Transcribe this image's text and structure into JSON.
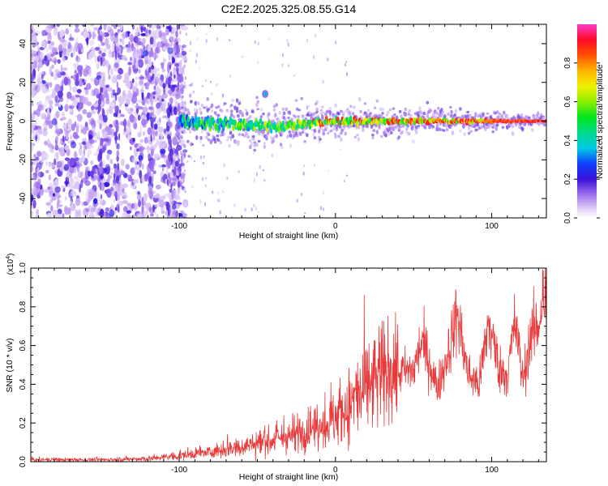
{
  "chart_data": [
    {
      "type": "heatmap",
      "title": "C2E2.2025.325.08.55.G14",
      "xlabel": "Height of straight line (km)",
      "ylabel": "Frequency (Hz)",
      "xlim": [
        -195,
        135
      ],
      "ylim": [
        -50,
        50
      ],
      "x_ticks": [
        -100,
        0,
        100
      ],
      "x_tick_labels": [
        "-100",
        "0",
        "100"
      ],
      "y_ticks": [
        -40,
        -20,
        0,
        20,
        40
      ],
      "y_tick_labels": [
        "-40",
        "-20",
        "0",
        "20",
        "40"
      ],
      "colorbar": {
        "label": "Normalized spectral amplitude",
        "range": [
          0,
          1
        ],
        "ticks": [
          0.0,
          0.2,
          0.4,
          0.6,
          0.8
        ],
        "tick_labels": [
          "0.0",
          "0.2",
          "0.4",
          "0.6",
          "0.8"
        ]
      },
      "regions": [
        {
          "name": "broadband noise",
          "x_range": [
            -195,
            -100
          ],
          "freq_range": [
            -50,
            50
          ],
          "amplitude": 0.15
        },
        {
          "name": "signal trace",
          "x_range": [
            -100,
            135
          ],
          "center_freq": [
            [
              -100,
              0
            ],
            [
              -40,
              -3
            ],
            [
              0,
              0
            ],
            [
              135,
              0
            ]
          ],
          "peak_amplitude": 0.9
        },
        {
          "name": "isolated spot",
          "x": -45,
          "freq": 14,
          "amplitude": 0.25
        }
      ]
    },
    {
      "type": "line",
      "title": "",
      "xlabel": "Height of straight line (km)",
      "ylabel": "SNR (10 * v/v)",
      "y_scale_note": "(x10^4)",
      "y_scale_base": "(x10",
      "y_scale_exp": "4",
      "y_scale_close": ")",
      "xlim": [
        -195,
        135
      ],
      "ylim": [
        0,
        1.0
      ],
      "x_ticks": [
        -100,
        0,
        100
      ],
      "x_tick_labels": [
        "-100",
        "0",
        "100"
      ],
      "y_ticks": [
        0.0,
        0.2,
        0.4,
        0.6,
        0.8,
        1.0
      ],
      "y_tick_labels": [
        "0.0",
        "0.2",
        "0.4",
        "0.6",
        "0.8",
        "1.0"
      ],
      "series": [
        {
          "name": "SNR",
          "color": "#e83a3a",
          "envelope_x": [
            -195,
            -150,
            -120,
            -100,
            -80,
            -60,
            -40,
            -20,
            -10,
            0,
            10,
            20,
            30,
            40,
            50,
            55,
            60,
            65,
            70,
            78,
            85,
            92,
            98,
            105,
            110,
            115,
            120,
            125,
            130,
            133,
            135
          ],
          "envelope_y": [
            0.01,
            0.01,
            0.015,
            0.03,
            0.05,
            0.08,
            0.11,
            0.15,
            0.2,
            0.22,
            0.3,
            0.38,
            0.44,
            0.46,
            0.47,
            0.62,
            0.52,
            0.38,
            0.5,
            0.76,
            0.45,
            0.4,
            0.72,
            0.48,
            0.45,
            0.72,
            0.42,
            0.65,
            0.7,
            0.9,
            0.8
          ]
        }
      ]
    }
  ]
}
